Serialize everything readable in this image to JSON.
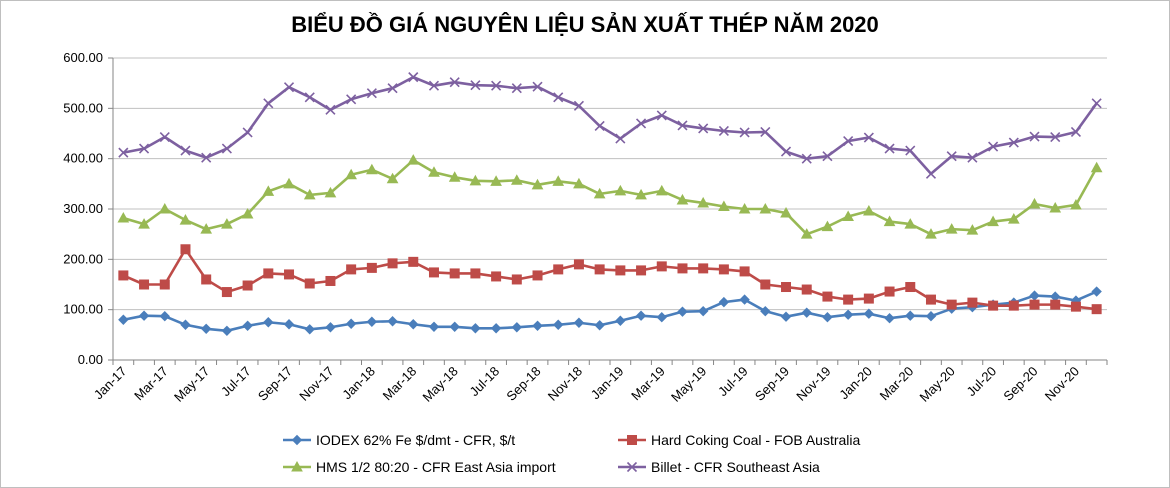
{
  "chart_data": {
    "type": "line",
    "title": "BIỂU ĐỒ GIÁ NGUYÊN LIỆU SẢN XUẤT THÉP NĂM 2020",
    "xlabel": "",
    "ylabel": "",
    "ylim": [
      0,
      600
    ],
    "yticks": [
      "0.00",
      "100.00",
      "200.00",
      "300.00",
      "400.00",
      "500.00",
      "600.00"
    ],
    "grid": true,
    "legend_position": "bottom",
    "categories": [
      "Jan-17",
      "Feb-17",
      "Mar-17",
      "Apr-17",
      "May-17",
      "Jun-17",
      "Jul-17",
      "Aug-17",
      "Sep-17",
      "Oct-17",
      "Nov-17",
      "Dec-17",
      "Jan-18",
      "Feb-18",
      "Mar-18",
      "Apr-18",
      "May-18",
      "Jun-18",
      "Jul-18",
      "Aug-18",
      "Sep-18",
      "Oct-18",
      "Nov-18",
      "Dec-18",
      "Jan-19",
      "Feb-19",
      "Mar-19",
      "Apr-19",
      "May-19",
      "Jun-19",
      "Jul-19",
      "Aug-19",
      "Sep-19",
      "Oct-19",
      "Nov-19",
      "Dec-19",
      "Jan-20",
      "Feb-20",
      "Mar-20",
      "Apr-20",
      "May-20",
      "Jun-20",
      "Jul-20",
      "Aug-20",
      "Sep-20",
      "Oct-20",
      "Nov-20",
      "Dec-20"
    ],
    "tick_labels": [
      "Jan-17",
      "Mar-17",
      "May-17",
      "Jul-17",
      "Sep-17",
      "Nov-17",
      "Jan-18",
      "Mar-18",
      "May-18",
      "Jul-18",
      "Sep-18",
      "Nov-18",
      "Jan-19",
      "Mar-19",
      "May-19",
      "Jul-19",
      "Sep-19",
      "Nov-19",
      "Jan-20",
      "Mar-20",
      "May-20",
      "Jul-20",
      "Sep-20",
      "Nov-20"
    ],
    "series": [
      {
        "name": "IODEX 62% Fe $/dmt - CFR, $/t",
        "color": "#4a7ebb",
        "marker": "diamond",
        "values": [
          80,
          88,
          87,
          70,
          62,
          58,
          68,
          75,
          71,
          61,
          65,
          72,
          76,
          77,
          71,
          66,
          66,
          63,
          63,
          65,
          68,
          70,
          74,
          69,
          78,
          88,
          85,
          96,
          97,
          115,
          120,
          97,
          86,
          94,
          85,
          90,
          92,
          83,
          88,
          87,
          102,
          105,
          110,
          114,
          128,
          126,
          118,
          136
        ]
      },
      {
        "name": "Hard Coking Coal - FOB Australia",
        "color": "#be4b48",
        "marker": "square",
        "values": [
          168,
          150,
          150,
          220,
          160,
          135,
          148,
          172,
          170,
          152,
          157,
          180,
          183,
          192,
          195,
          174,
          172,
          172,
          166,
          160,
          168,
          180,
          190,
          180,
          178,
          178,
          186,
          182,
          182,
          180,
          176,
          150,
          145,
          140,
          126,
          120,
          122,
          136,
          145,
          120,
          110,
          114,
          108,
          108,
          110,
          110,
          106,
          101
        ]
      },
      {
        "name": "HMS 1/2 80:20 - CFR East Asia import",
        "color": "#98b954",
        "marker": "triangle",
        "values": [
          282,
          270,
          300,
          278,
          260,
          270,
          290,
          335,
          350,
          328,
          332,
          368,
          378,
          360,
          397,
          373,
          363,
          356,
          355,
          357,
          348,
          355,
          350,
          330,
          336,
          328,
          336,
          318,
          312,
          305,
          300,
          300,
          292,
          250,
          265,
          285,
          296,
          275,
          270,
          250,
          260,
          258,
          275,
          280,
          310,
          302,
          308,
          382
        ]
      },
      {
        "name": "Billet - CFR Southeast Asia",
        "color": "#7d60a0",
        "marker": "x",
        "values": [
          412,
          420,
          443,
          416,
          402,
          420,
          452,
          510,
          542,
          522,
          497,
          518,
          530,
          540,
          562,
          545,
          552,
          546,
          545,
          540,
          543,
          522,
          505,
          465,
          440,
          470,
          486,
          466,
          460,
          455,
          452,
          453,
          414,
          400,
          405,
          435,
          442,
          420,
          416,
          370,
          405,
          402,
          424,
          432,
          444,
          443,
          453,
          510
        ]
      }
    ]
  }
}
